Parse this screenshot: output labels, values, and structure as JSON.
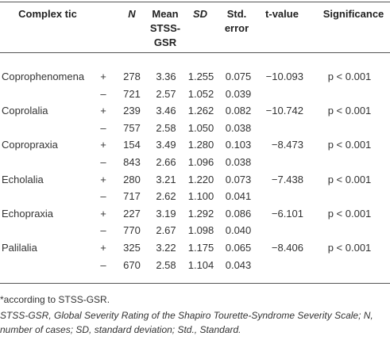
{
  "table": {
    "header": [
      "Complex tic",
      "N",
      "Mean STSS-GSR",
      "SD",
      "Std. error",
      "t-value",
      "Significance"
    ],
    "groups": [
      {
        "name": "Coprophenomena",
        "t": "−10.093",
        "sig": "p < 0.001",
        "rows": [
          {
            "sign": "+",
            "n": "278",
            "mean": "3.36",
            "sd": "1.255",
            "se": "0.075"
          },
          {
            "sign": "–",
            "n": "721",
            "mean": "2.57",
            "sd": "1.052",
            "se": "0.039"
          }
        ]
      },
      {
        "name": "Coprolalia",
        "t": "−10.742",
        "sig": "p < 0.001",
        "rows": [
          {
            "sign": "+",
            "n": "239",
            "mean": "3.46",
            "sd": "1.262",
            "se": "0.082"
          },
          {
            "sign": "–",
            "n": "757",
            "mean": "2.58",
            "sd": "1.050",
            "se": "0.038"
          }
        ]
      },
      {
        "name": "Copropraxia",
        "t": "−8.473",
        "sig": "p < 0.001",
        "rows": [
          {
            "sign": "+",
            "n": "154",
            "mean": "3.49",
            "sd": "1.280",
            "se": "0.103"
          },
          {
            "sign": "–",
            "n": "843",
            "mean": "2.66",
            "sd": "1.096",
            "se": "0.038"
          }
        ]
      },
      {
        "name": "Echolalia",
        "t": "−7.438",
        "sig": "p < 0.001",
        "rows": [
          {
            "sign": "+",
            "n": "280",
            "mean": "3.21",
            "sd": "1.220",
            "se": "0.073"
          },
          {
            "sign": "–",
            "n": "717",
            "mean": "2.62",
            "sd": "1.100",
            "se": "0.041"
          }
        ]
      },
      {
        "name": "Echopraxia",
        "t": "−6.101",
        "sig": "p < 0.001",
        "rows": [
          {
            "sign": "+",
            "n": "227",
            "mean": "3.19",
            "sd": "1.292",
            "se": "0.086"
          },
          {
            "sign": "–",
            "n": "770",
            "mean": "2.67",
            "sd": "1.098",
            "se": "0.040"
          }
        ]
      },
      {
        "name": "Palilalia",
        "t": "−8.406",
        "sig": "p < 0.001",
        "rows": [
          {
            "sign": "+",
            "n": "325",
            "mean": "3.22",
            "sd": "1.175",
            "se": "0.065"
          },
          {
            "sign": "–",
            "n": "670",
            "mean": "2.58",
            "sd": "1.104",
            "se": "0.043"
          }
        ]
      }
    ]
  },
  "notes": [
    "*according to STSS-GSR.",
    "STSS-GSR, Global Severity Rating of the Shapiro Tourette-Syndrome Severity Scale; N, number of cases; SD, standard deviation; Std., Standard."
  ]
}
